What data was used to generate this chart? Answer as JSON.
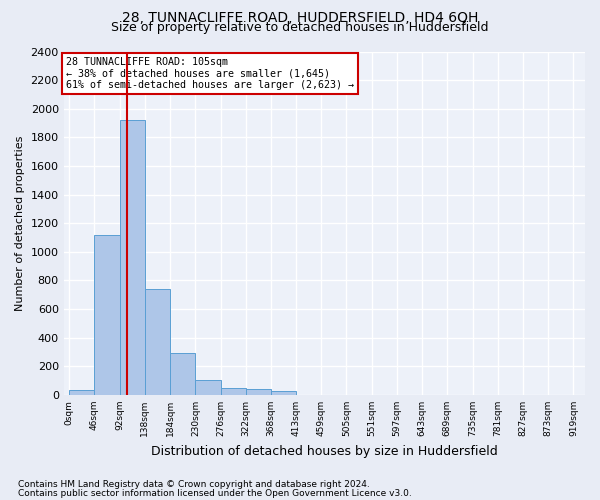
{
  "title": "28, TUNNACLIFFE ROAD, HUDDERSFIELD, HD4 6QH",
  "subtitle": "Size of property relative to detached houses in Huddersfield",
  "xlabel": "Distribution of detached houses by size in Huddersfield",
  "ylabel": "Number of detached properties",
  "footnote1": "Contains HM Land Registry data © Crown copyright and database right 2024.",
  "footnote2": "Contains public sector information licensed under the Open Government Licence v3.0.",
  "annotation_line1": "28 TUNNACLIFFE ROAD: 105sqm",
  "annotation_line2": "← 38% of detached houses are smaller (1,645)",
  "annotation_line3": "61% of semi-detached houses are larger (2,623) →",
  "property_size": 105,
  "bar_edges": [
    0,
    46,
    92,
    138,
    184,
    230,
    276,
    322,
    368,
    413,
    459,
    505,
    551,
    597,
    643,
    689,
    735,
    781,
    827,
    873,
    919
  ],
  "bar_heights": [
    35,
    1120,
    1920,
    740,
    295,
    105,
    48,
    38,
    25,
    0,
    0,
    0,
    0,
    0,
    0,
    0,
    0,
    0,
    0,
    0
  ],
  "bar_color": "#aec6e8",
  "bar_edge_color": "#5a9fd4",
  "vline_color": "#cc0000",
  "vline_x": 105,
  "ylim": [
    0,
    2400
  ],
  "yticks": [
    0,
    200,
    400,
    600,
    800,
    1000,
    1200,
    1400,
    1600,
    1800,
    2000,
    2200,
    2400
  ],
  "bg_color": "#e8ecf5",
  "plot_bg_color": "#edf1f9",
  "grid_color": "#ffffff",
  "annotation_box_color": "#cc0000",
  "title_fontsize": 10,
  "subtitle_fontsize": 9,
  "footnote_fontsize": 6.5
}
